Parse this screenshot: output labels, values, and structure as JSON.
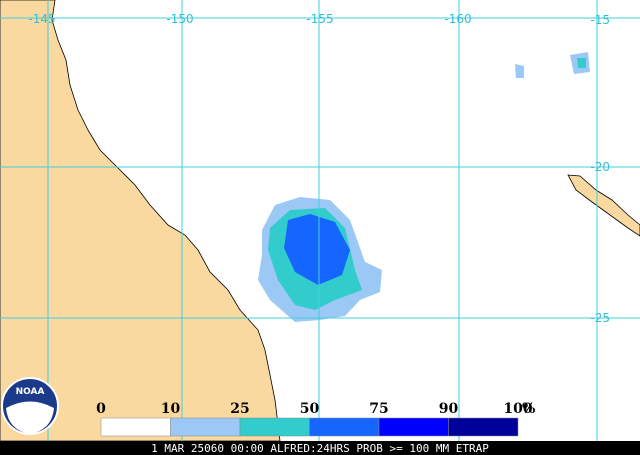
{
  "map": {
    "lon_labels": [
      "-145",
      "-150",
      "-155",
      "-160"
    ],
    "lat_labels": [
      "-15",
      "-20",
      "-25"
    ],
    "legend": {
      "labels": [
        "0",
        "10",
        "25",
        "50",
        "75",
        "90",
        "100"
      ],
      "unit": "%",
      "colors": [
        "#ffffff",
        "#9cc8f6",
        "#33cccc",
        "#1466ff",
        "#0000ff",
        "#00009a"
      ]
    },
    "caption": "1 MAR 25060 00:00 ALFRED:24HRS PROB >= 100 MM ETRAP",
    "logo": "NOAA"
  }
}
